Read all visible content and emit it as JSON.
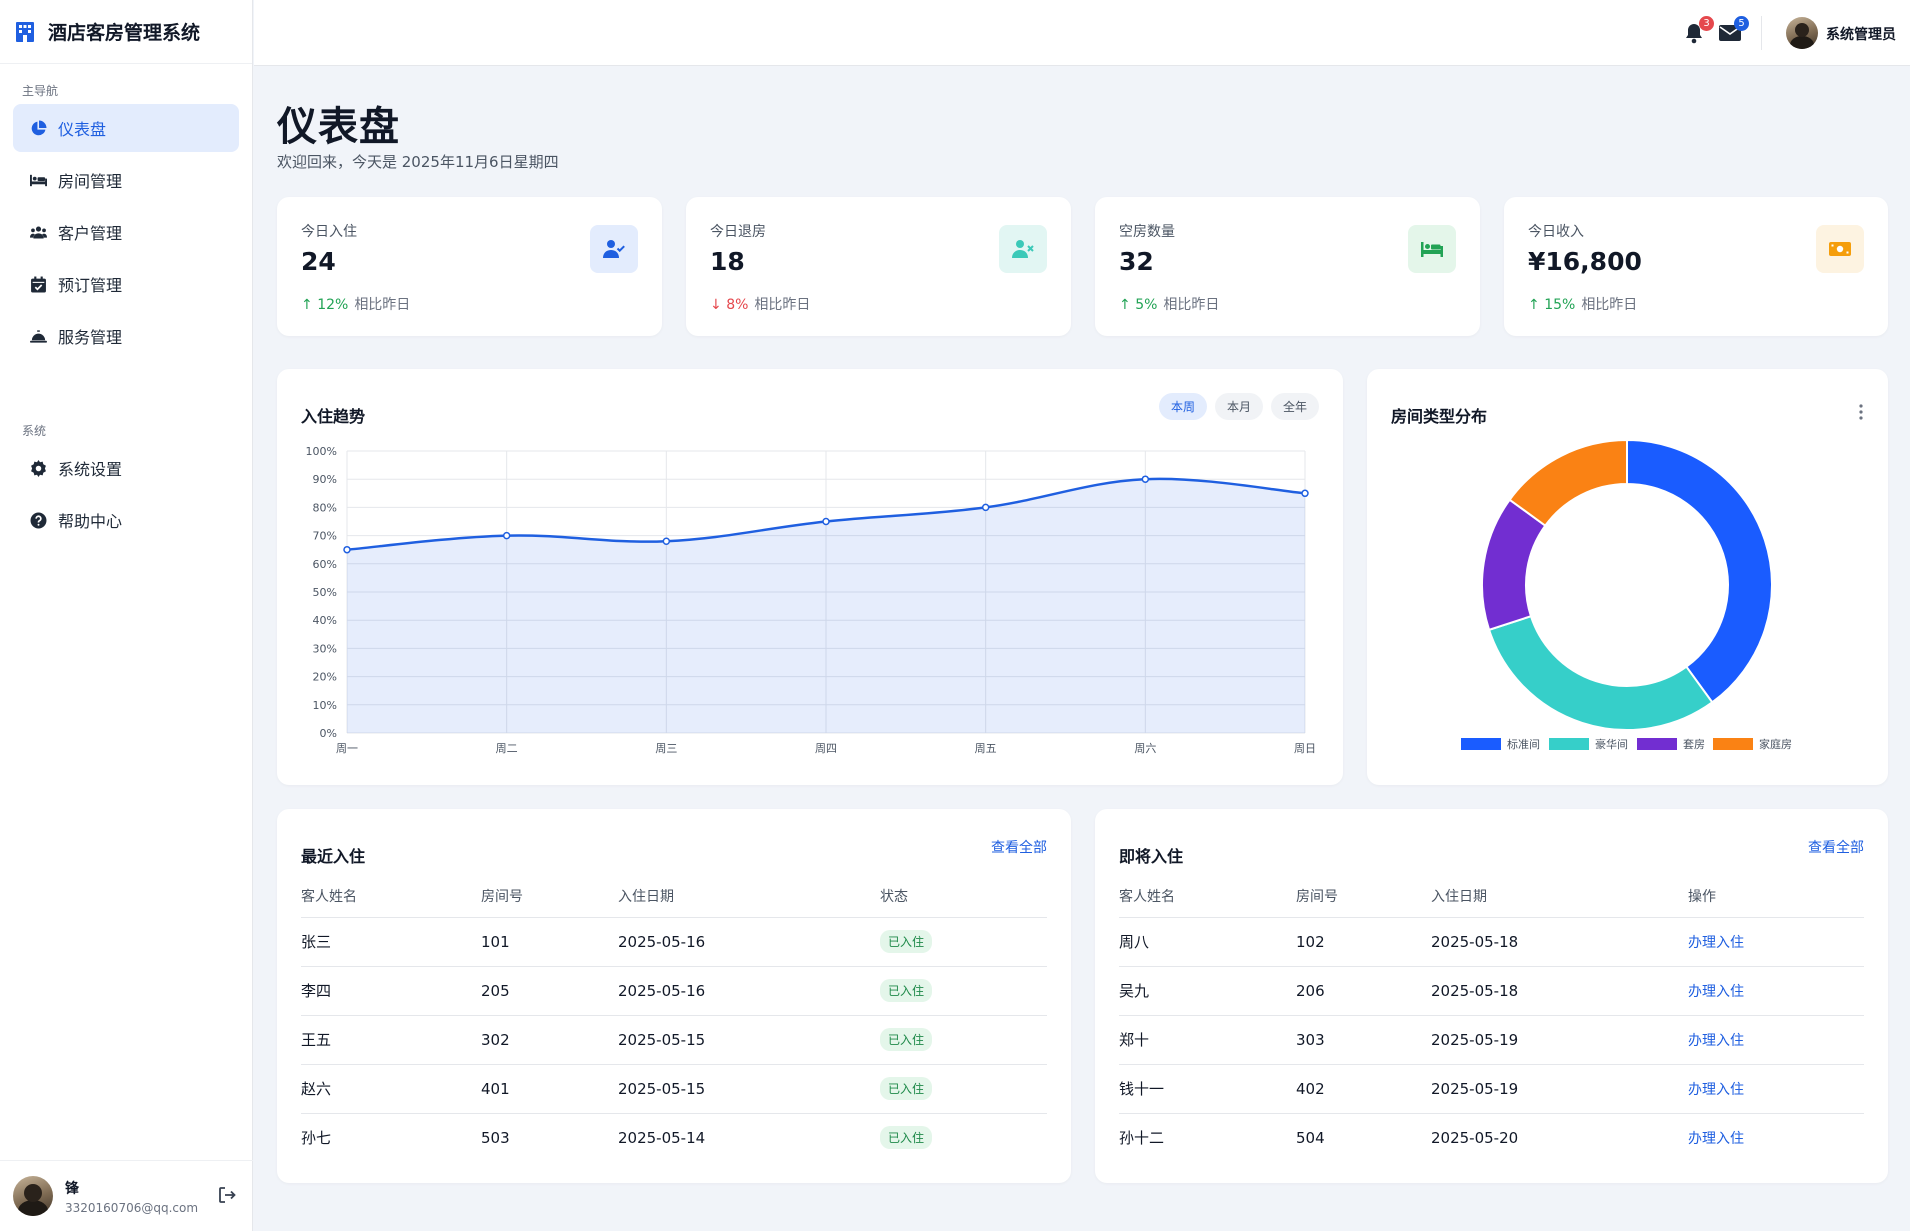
{
  "app": {
    "title": "酒店客房管理系统"
  },
  "sidebar": {
    "section_main": "主导航",
    "section_system": "系统",
    "items": [
      {
        "label": "仪表盘",
        "icon": "pie-chart-icon",
        "active": true
      },
      {
        "label": "房间管理",
        "icon": "bed-icon"
      },
      {
        "label": "客户管理",
        "icon": "users-icon"
      },
      {
        "label": "预订管理",
        "icon": "calendar-check-icon"
      },
      {
        "label": "服务管理",
        "icon": "bell-concierge-icon"
      }
    ],
    "system_items": [
      {
        "label": "系统设置",
        "icon": "gear-icon"
      },
      {
        "label": "帮助中心",
        "icon": "question-circle-icon"
      }
    ],
    "user": {
      "name": "锋",
      "email": "3320160706@qq.com"
    }
  },
  "header": {
    "notifications_count": "3",
    "messages_count": "5",
    "user_name": "系统管理员"
  },
  "page": {
    "title": "仪表盘",
    "subtitle": "欢迎回来，今天是 2025年11月6日星期四"
  },
  "stats": [
    {
      "label": "今日入住",
      "value": "24",
      "change": "12%",
      "direction": "up",
      "compare": "相比昨日",
      "icon": "user-check-icon",
      "icon_color": "#1f5fe0",
      "icon_bg": "#e3ecfd"
    },
    {
      "label": "今日退房",
      "value": "18",
      "change": "8%",
      "direction": "down",
      "compare": "相比昨日",
      "icon": "user-x-icon",
      "icon_color": "#3bc9b8",
      "icon_bg": "#e2f6f3"
    },
    {
      "label": "空房数量",
      "value": "32",
      "change": "5%",
      "direction": "up",
      "compare": "相比昨日",
      "icon": "bed-icon",
      "icon_color": "#22a355",
      "icon_bg": "#e4f6ea"
    },
    {
      "label": "今日收入",
      "value": "¥16,800",
      "change": "15%",
      "direction": "up",
      "compare": "相比昨日",
      "icon": "money-icon",
      "icon_color": "#f59e0b",
      "icon_bg": "#fdf3e1"
    }
  ],
  "trend": {
    "title": "入住趋势",
    "ranges": [
      "本周",
      "本月",
      "全年"
    ],
    "active_range": "本周"
  },
  "distribution": {
    "title": "房间类型分布"
  },
  "recent_checkins": {
    "title": "最近入住",
    "view_all": "查看全部",
    "columns": [
      "客人姓名",
      "房间号",
      "入住日期",
      "状态"
    ],
    "rows": [
      {
        "name": "张三",
        "room": "101",
        "date": "2025-05-16",
        "status": "已入住"
      },
      {
        "name": "李四",
        "room": "205",
        "date": "2025-05-16",
        "status": "已入住"
      },
      {
        "name": "王五",
        "room": "302",
        "date": "2025-05-15",
        "status": "已入住"
      },
      {
        "name": "赵六",
        "room": "401",
        "date": "2025-05-15",
        "status": "已入住"
      },
      {
        "name": "孙七",
        "room": "503",
        "date": "2025-05-14",
        "status": "已入住"
      }
    ]
  },
  "upcoming_checkins": {
    "title": "即将入住",
    "view_all": "查看全部",
    "columns": [
      "客人姓名",
      "房间号",
      "入住日期",
      "操作"
    ],
    "rows": [
      {
        "name": "周八",
        "room": "102",
        "date": "2025-05-18",
        "action": "办理入住"
      },
      {
        "name": "吴九",
        "room": "206",
        "date": "2025-05-18",
        "action": "办理入住"
      },
      {
        "name": "郑十",
        "room": "303",
        "date": "2025-05-19",
        "action": "办理入住"
      },
      {
        "name": "钱十一",
        "room": "402",
        "date": "2025-05-19",
        "action": "办理入住"
      },
      {
        "name": "孙十二",
        "room": "504",
        "date": "2025-05-20",
        "action": "办理入住"
      }
    ]
  },
  "chart_data": [
    {
      "type": "area",
      "title": "入住趋势",
      "categories": [
        "周一",
        "周二",
        "周三",
        "周四",
        "周五",
        "周六",
        "周日"
      ],
      "series": [
        {
          "values": [
            65,
            70,
            68,
            75,
            80,
            90,
            85
          ],
          "color": "#1f5fe0"
        }
      ],
      "ylim": [
        0,
        100
      ],
      "ytick_format": "%",
      "yticks": [
        0,
        10,
        20,
        30,
        40,
        50,
        60,
        70,
        80,
        90,
        100
      ],
      "grid": true
    },
    {
      "type": "pie",
      "variant": "doughnut",
      "title": "房间类型分布",
      "categories": [
        "标准间",
        "豪华间",
        "套房",
        "家庭房"
      ],
      "values": [
        40,
        30,
        15,
        15
      ],
      "colors": [
        "#1a5cff",
        "#36cfc9",
        "#722ed1",
        "#fa8214"
      ],
      "legend": "bottom"
    }
  ]
}
